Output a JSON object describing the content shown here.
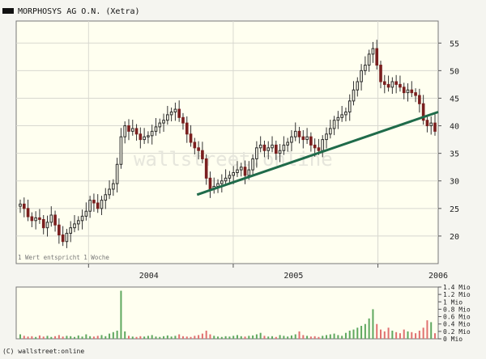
{
  "chart_data": [
    {
      "type": "candlestick",
      "title": "MORPHOSYS AG O.N. (Xetra)",
      "legend": "MORPHOSYS AG O.N. (Xetra)",
      "watermark": "wallstreet:online",
      "note": "1 Wert entspricht 1 Woche",
      "x_ticks": [
        "2004",
        "2005",
        "2006"
      ],
      "x_range": [
        "2003-07",
        "2006-06"
      ],
      "y_ticks": [
        20,
        25,
        30,
        35,
        40,
        45,
        50,
        55
      ],
      "ylim": [
        15,
        59
      ],
      "grid": true,
      "colors": {
        "up": "#2a2a2a",
        "down": "#7a1f1f",
        "trendline": "#1f6b4a",
        "background": "#fffff0"
      },
      "trendline": {
        "start": [
          "2004-10",
          27.5
        ],
        "end": [
          "2006-06",
          42.5
        ]
      },
      "series": [
        {
          "values": [
            25.8,
            25.0,
            23.5,
            22.8,
            23.3,
            23.0,
            21.5,
            22.5,
            23.8,
            22.0,
            20.2,
            19.0,
            20.5,
            21.5,
            22.2,
            22.8,
            23.6,
            24.5,
            26.5,
            26.0,
            25.0,
            26.5,
            27.5,
            28.5,
            29.5,
            33.0,
            38.0,
            40.0,
            39.0,
            39.5,
            38.5,
            37.5,
            38.0,
            38.2,
            39.0,
            39.8,
            40.5,
            41.0,
            42.0,
            42.5,
            43.0,
            41.5,
            40.5,
            38.5,
            37.0,
            36.0,
            35.5,
            34.0,
            30.5,
            28.5,
            29.0,
            29.5,
            30.0,
            30.5,
            31.0,
            31.5,
            32.0,
            32.5,
            31.0,
            32.0,
            34.0,
            36.0,
            36.5,
            35.5,
            36.0,
            36.5,
            35.0,
            35.5,
            36.5,
            37.0,
            38.0,
            39.0,
            38.0,
            37.5,
            38.0,
            36.5,
            36.0,
            35.5,
            37.5,
            38.5,
            39.5,
            41.0,
            41.5,
            42.0,
            42.5,
            44.5,
            46.5,
            48.0,
            50.0,
            51.0,
            53.0,
            54.0,
            51.0,
            48.0,
            47.5,
            47.0,
            48.0,
            47.5,
            47.0,
            46.0,
            46.5,
            46.0,
            45.5,
            44.0,
            41.0,
            40.0,
            40.5,
            39.0
          ]
        }
      ]
    },
    {
      "type": "bar",
      "y_ticks": [
        "1.4 Mio",
        "1.2 Mio",
        "1 Mio",
        "0.8 Mio",
        "0.6 Mio",
        "0.4 Mio",
        "0.2 Mio",
        "0 Mio"
      ],
      "ylim": [
        0,
        1.4
      ],
      "unit": "Mio",
      "colors": {
        "up": "#5fa85f",
        "down": "#e07070"
      },
      "series": [
        {
          "values": [
            0.12,
            0.08,
            0.06,
            0.07,
            0.05,
            0.09,
            0.06,
            0.08,
            0.05,
            0.07,
            0.1,
            0.06,
            0.08,
            0.07,
            0.05,
            0.09,
            0.06,
            0.12,
            0.07,
            0.06,
            0.08,
            0.1,
            0.07,
            0.14,
            0.18,
            0.22,
            1.3,
            0.2,
            0.08,
            0.06,
            0.05,
            0.07,
            0.06,
            0.08,
            0.1,
            0.06,
            0.05,
            0.07,
            0.09,
            0.06,
            0.08,
            0.12,
            0.07,
            0.06,
            0.05,
            0.08,
            0.1,
            0.14,
            0.22,
            0.12,
            0.08,
            0.06,
            0.05,
            0.07,
            0.06,
            0.08,
            0.1,
            0.07,
            0.06,
            0.08,
            0.09,
            0.12,
            0.16,
            0.08,
            0.06,
            0.07,
            0.05,
            0.1,
            0.08,
            0.06,
            0.09,
            0.12,
            0.2,
            0.1,
            0.08,
            0.06,
            0.07,
            0.05,
            0.08,
            0.1,
            0.12,
            0.14,
            0.1,
            0.08,
            0.16,
            0.22,
            0.25,
            0.3,
            0.35,
            0.4,
            0.55,
            0.8,
            0.4,
            0.25,
            0.2,
            0.3,
            0.22,
            0.18,
            0.15,
            0.25,
            0.2,
            0.18,
            0.15,
            0.22,
            0.3,
            0.5,
            0.45,
            0.15
          ]
        }
      ]
    }
  ],
  "copyright": "(C) wallstreet:online"
}
